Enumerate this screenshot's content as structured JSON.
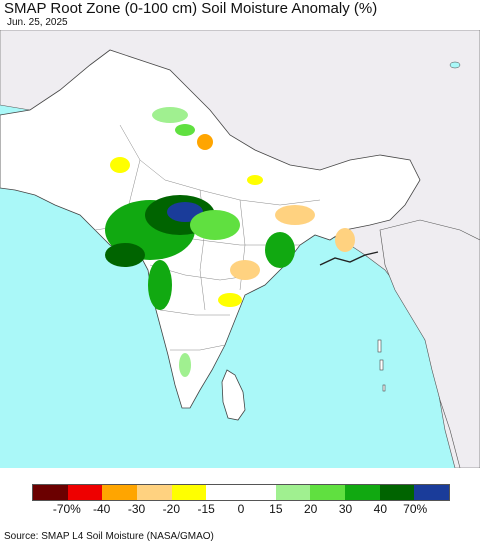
{
  "header": {
    "title": "SMAP Root Zone (0-100 cm) Soil Moisture Anomaly (%)",
    "date": "Jun. 25, 2025"
  },
  "legend": {
    "colors": [
      "#6b0000",
      "#ee0000",
      "#ffa500",
      "#ffd280",
      "#ffff00",
      "#ffffff",
      "#ffffff",
      "#a0f090",
      "#60e040",
      "#11a911",
      "#006400",
      "#1a3c9a"
    ],
    "tick_labels": [
      "-70%",
      "-40",
      "-30",
      "-20",
      "-15",
      "0",
      "15",
      "20",
      "30",
      "40",
      "70%"
    ]
  },
  "colors": {
    "ocean": "#aaf8f8",
    "land": "#ffffff",
    "outside_land": "#efedf1",
    "border": "#444444"
  },
  "footer": {
    "source": "Source: SMAP L4 Soil Moisture (NASA/GMAO)"
  }
}
